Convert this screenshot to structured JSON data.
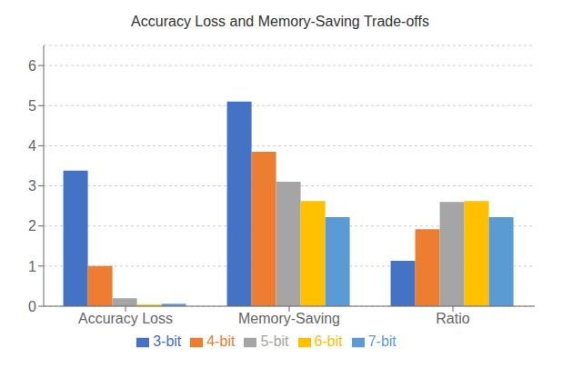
{
  "chart_data": {
    "type": "bar",
    "title": "Accuracy Loss and Memory-Saving Trade-offs",
    "categories": [
      "Accuracy Loss",
      "Memory-Saving",
      "Ratio"
    ],
    "series": [
      {
        "name": "3-bit",
        "color": "#4472C4",
        "values": [
          3.38,
          5.1,
          1.13
        ]
      },
      {
        "name": "4-bit",
        "color": "#ED7D31",
        "values": [
          1.0,
          3.85,
          1.92
        ]
      },
      {
        "name": "5-bit",
        "color": "#A5A5A5",
        "values": [
          0.2,
          3.1,
          2.6
        ]
      },
      {
        "name": "6-bit",
        "color": "#FFC000",
        "values": [
          0.04,
          2.62,
          2.62
        ]
      },
      {
        "name": "7-bit",
        "color": "#5B9BD5",
        "values": [
          0.06,
          2.22,
          2.22
        ]
      }
    ],
    "ylim": [
      0,
      6.5
    ],
    "yticks": [
      0,
      1,
      2,
      3,
      4,
      5,
      6
    ],
    "grid": true,
    "legend": "bottom"
  }
}
